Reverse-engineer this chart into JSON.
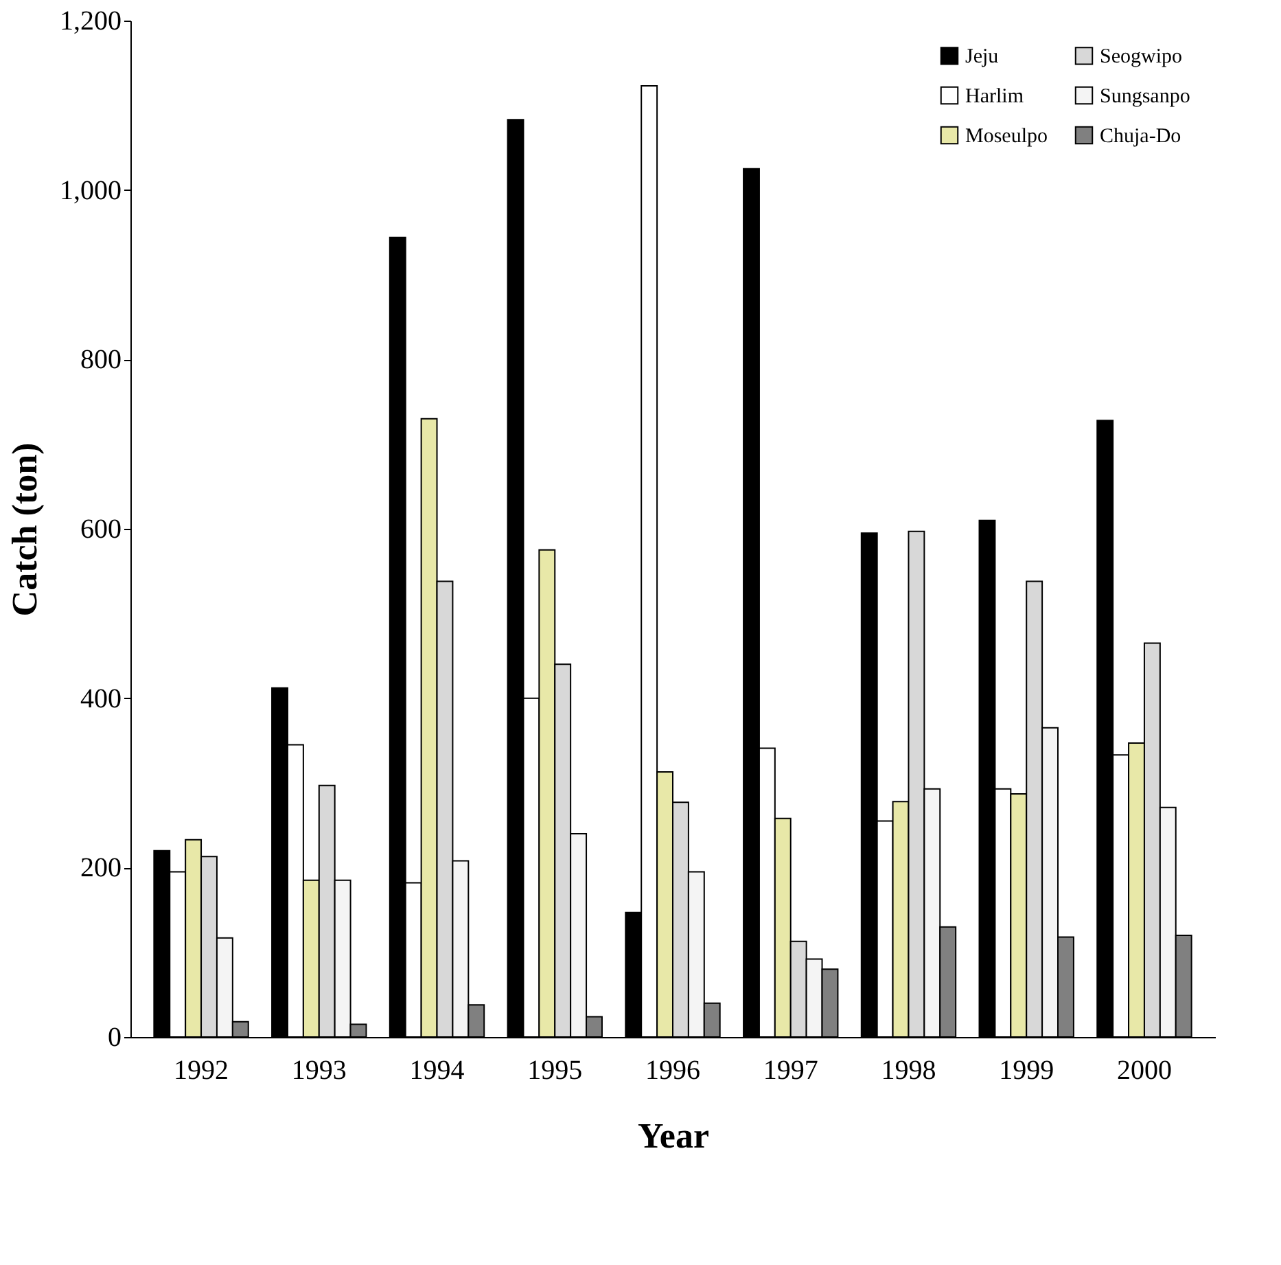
{
  "chart_data": {
    "type": "bar",
    "xlabel": "Year",
    "ylabel": "Catch (ton)",
    "categories": [
      "1992",
      "1993",
      "1994",
      "1995",
      "1996",
      "1997",
      "1998",
      "1999",
      "2000"
    ],
    "series": [
      {
        "name": "Jeju",
        "color": "#000000",
        "values": [
          220,
          412,
          944,
          1083,
          147,
          1025,
          595,
          610,
          728
        ]
      },
      {
        "name": "Harlim",
        "color": "#ffffff",
        "values": [
          195,
          345,
          182,
          400,
          1123,
          341,
          255,
          293,
          333
        ]
      },
      {
        "name": "Moseulpo",
        "color": "#e8e8a8",
        "values": [
          233,
          185,
          730,
          575,
          313,
          258,
          278,
          287,
          347
        ]
      },
      {
        "name": "Seogwipo",
        "color": "#d8d8d8",
        "values": [
          213,
          297,
          538,
          440,
          277,
          113,
          597,
          538,
          465
        ]
      },
      {
        "name": "Sungsanpo",
        "color": "#f4f4f4",
        "values": [
          117,
          185,
          208,
          240,
          195,
          92,
          293,
          365,
          271
        ]
      },
      {
        "name": "Chuja-Do",
        "color": "#808080",
        "values": [
          18,
          15,
          38,
          24,
          40,
          80,
          130,
          118,
          120
        ]
      }
    ],
    "ylim": [
      0,
      1200
    ],
    "yticks": [
      0,
      200,
      400,
      600,
      800,
      {
        "value": 1000,
        "label": "1,000"
      },
      {
        "value": 1200,
        "label": "1,200"
      }
    ],
    "grid": false,
    "legend": "top right"
  }
}
